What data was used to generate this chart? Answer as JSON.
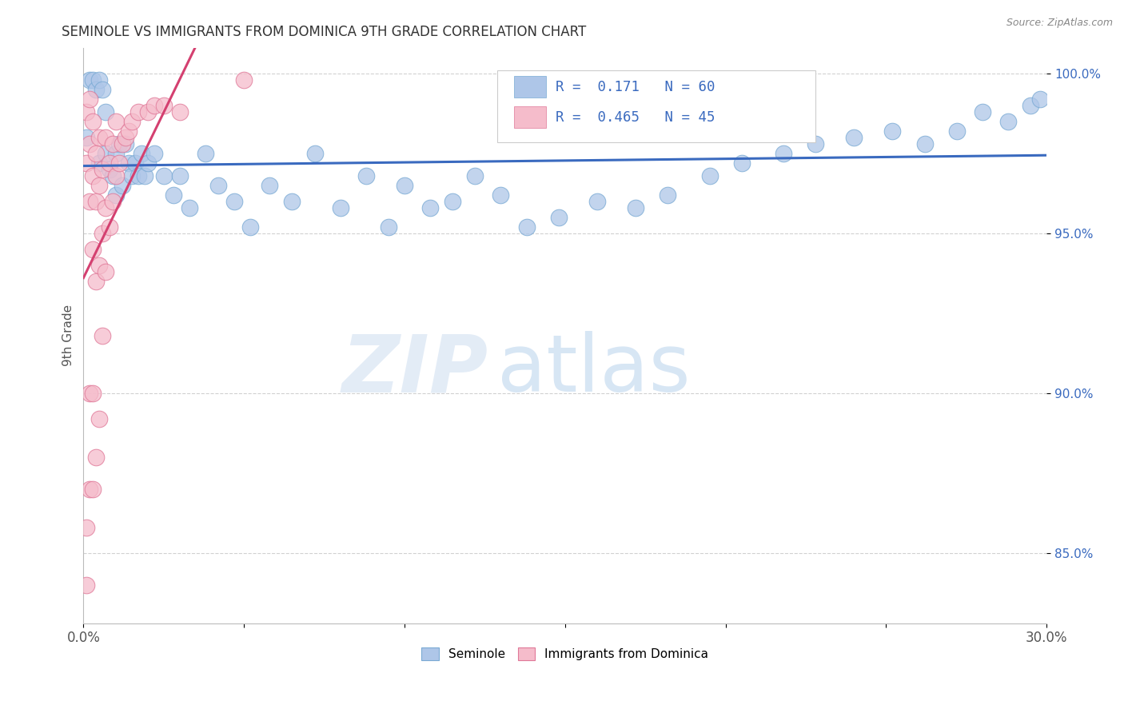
{
  "title": "SEMINOLE VS IMMIGRANTS FROM DOMINICA 9TH GRADE CORRELATION CHART",
  "source_text": "Source: ZipAtlas.com",
  "xlabel_start": "0.0%",
  "xlabel_end": "30.0%",
  "ylabel": "9th Grade",
  "xmin": 0.0,
  "xmax": 0.3,
  "ymin": 0.828,
  "ymax": 1.008,
  "yticks": [
    0.85,
    0.9,
    0.95,
    1.0
  ],
  "ytick_labels": [
    "85.0%",
    "90.0%",
    "95.0%",
    "100.0%"
  ],
  "grid_color": "#cccccc",
  "seminole_color": "#aec6e8",
  "seminole_edge": "#7aaad4",
  "dominica_color": "#f5bccb",
  "dominica_edge": "#e07898",
  "R_seminole": 0.171,
  "N_seminole": 60,
  "R_dominica": 0.465,
  "N_dominica": 45,
  "legend_label_seminole": "Seminole",
  "legend_label_dominica": "Immigrants from Dominica",
  "watermark_zip": "ZIP",
  "watermark_atlas": "atlas",
  "seminole_points_x": [
    0.001,
    0.002,
    0.003,
    0.004,
    0.005,
    0.005,
    0.006,
    0.007,
    0.007,
    0.008,
    0.009,
    0.01,
    0.01,
    0.011,
    0.012,
    0.013,
    0.014,
    0.015,
    0.016,
    0.017,
    0.018,
    0.019,
    0.02,
    0.022,
    0.025,
    0.028,
    0.03,
    0.033,
    0.038,
    0.042,
    0.047,
    0.052,
    0.058,
    0.065,
    0.072,
    0.08,
    0.088,
    0.095,
    0.1,
    0.108,
    0.115,
    0.122,
    0.13,
    0.138,
    0.148,
    0.16,
    0.172,
    0.182,
    0.195,
    0.205,
    0.218,
    0.228,
    0.24,
    0.252,
    0.262,
    0.272,
    0.28,
    0.288,
    0.295,
    0.298
  ],
  "seminole_points_y": [
    0.98,
    0.998,
    0.998,
    0.995,
    0.998,
    0.972,
    0.995,
    0.988,
    0.975,
    0.97,
    0.968,
    0.975,
    0.962,
    0.978,
    0.965,
    0.978,
    0.972,
    0.968,
    0.972,
    0.968,
    0.975,
    0.968,
    0.972,
    0.975,
    0.968,
    0.962,
    0.968,
    0.958,
    0.975,
    0.965,
    0.96,
    0.952,
    0.965,
    0.96,
    0.975,
    0.958,
    0.968,
    0.952,
    0.965,
    0.958,
    0.96,
    0.968,
    0.962,
    0.952,
    0.955,
    0.96,
    0.958,
    0.962,
    0.968,
    0.972,
    0.975,
    0.978,
    0.98,
    0.982,
    0.978,
    0.982,
    0.988,
    0.985,
    0.99,
    0.992
  ],
  "dominica_points_x": [
    0.001,
    0.001,
    0.001,
    0.001,
    0.002,
    0.002,
    0.002,
    0.002,
    0.002,
    0.003,
    0.003,
    0.003,
    0.003,
    0.003,
    0.004,
    0.004,
    0.004,
    0.004,
    0.005,
    0.005,
    0.005,
    0.005,
    0.006,
    0.006,
    0.006,
    0.007,
    0.007,
    0.007,
    0.008,
    0.008,
    0.009,
    0.009,
    0.01,
    0.01,
    0.011,
    0.012,
    0.013,
    0.014,
    0.015,
    0.017,
    0.02,
    0.022,
    0.025,
    0.03,
    0.05
  ],
  "dominica_points_y": [
    0.84,
    0.858,
    0.972,
    0.988,
    0.87,
    0.9,
    0.96,
    0.978,
    0.992,
    0.87,
    0.9,
    0.945,
    0.968,
    0.985,
    0.88,
    0.935,
    0.96,
    0.975,
    0.892,
    0.94,
    0.965,
    0.98,
    0.918,
    0.95,
    0.97,
    0.938,
    0.958,
    0.98,
    0.952,
    0.972,
    0.96,
    0.978,
    0.968,
    0.985,
    0.972,
    0.978,
    0.98,
    0.982,
    0.985,
    0.988,
    0.988,
    0.99,
    0.99,
    0.988,
    0.998
  ]
}
